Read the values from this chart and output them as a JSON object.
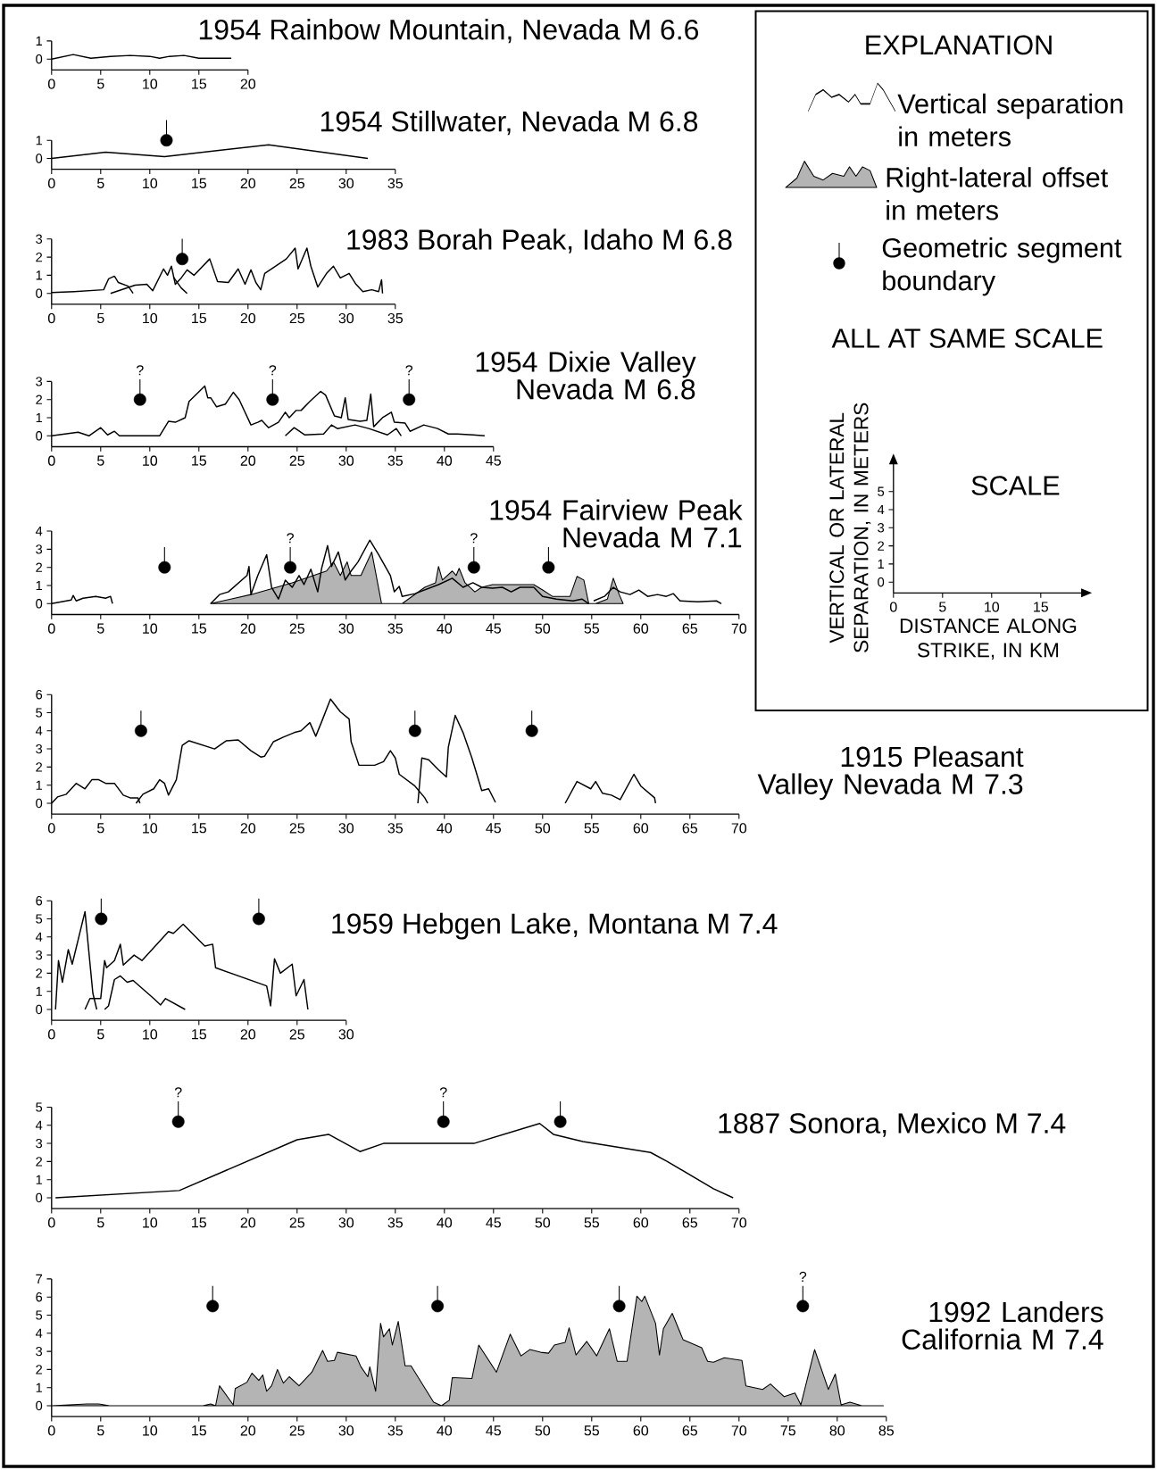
{
  "chart_data": [
    {
      "type": "line",
      "title": "1954  Rainbow Mountain, Nevada  M 6.6",
      "xlim": [
        0,
        20
      ],
      "xticks": [
        0,
        5,
        10,
        15,
        20
      ],
      "ylim": [
        -0.6,
        1
      ],
      "yticks": [
        0,
        1
      ],
      "series": [
        {
          "type": "line",
          "color": "#000000",
          "x": [
            0,
            2.2,
            4,
            6,
            8,
            10,
            11,
            12,
            13.5,
            15,
            18.3
          ],
          "values": [
            0,
            0.25,
            0.05,
            0.15,
            0.2,
            0.15,
            0.05,
            0.15,
            0.2,
            0.05,
            0.05
          ]
        }
      ]
    },
    {
      "type": "line",
      "title": "1954  Stillwater, Nevada  M 6.8",
      "xlim": [
        0,
        35
      ],
      "xticks": [
        0,
        5,
        10,
        15,
        20,
        25,
        30,
        35
      ],
      "ylim": [
        -0.6,
        1
      ],
      "yticks": [
        0,
        1
      ],
      "series": [
        {
          "type": "line",
          "color": "#000000",
          "x": [
            0,
            5.5,
            11.5,
            22.1,
            32.2
          ],
          "values": [
            0,
            0.35,
            0.1,
            0.75,
            0
          ]
        },
        {
          "type": "scatter",
          "color": "#000000",
          "marker": "circle",
          "x": [
            11.7
          ],
          "values": [
            1.0
          ]
        }
      ]
    },
    {
      "type": "line",
      "title": "1983  Borah Peak, Idaho  M 6.8",
      "xlim": [
        0,
        35
      ],
      "xticks": [
        0,
        5,
        10,
        15,
        20,
        25,
        30,
        35
      ],
      "ylim": [
        -0.6,
        3
      ],
      "yticks": [
        0,
        1,
        2,
        3
      ],
      "series": [
        {
          "type": "line",
          "color": "#000000",
          "x": [
            0,
            2.3,
            5.3,
            5.8,
            6.4,
            6.8,
            7.8,
            8.3
          ],
          "values": [
            0.05,
            0.1,
            0.2,
            0.8,
            0.95,
            0.6,
            0.4,
            0
          ]
        },
        {
          "type": "line",
          "color": "#000000",
          "x": [
            6,
            8.5,
            9.7,
            10.3,
            11.4,
            11.8,
            12.2,
            12.6,
            13.2,
            13.8,
            14.5,
            16.1,
            16.9,
            18.0,
            19.0,
            19.7,
            20.3,
            20.8,
            21.3,
            21.7,
            23.9,
            24.8,
            25.1,
            26.0,
            26.4,
            27.1,
            28.0,
            28.7,
            29.4,
            30.3,
            31.0,
            31.7,
            32.6,
            33.3,
            33.6,
            33.7
          ],
          "values": [
            0,
            0.45,
            0.5,
            0.15,
            1.35,
            1.0,
            1.5,
            0.5,
            0.85,
            1.3,
            1.0,
            1.9,
            0.65,
            0.6,
            1.35,
            0.5,
            1.3,
            0.6,
            0.2,
            1.1,
            1.9,
            2.5,
            1.35,
            2.5,
            1.5,
            0.35,
            1.1,
            1.5,
            0.85,
            1.1,
            0.5,
            0.1,
            0.2,
            0.1,
            0.75,
            0
          ]
        },
        {
          "type": "line",
          "color": "#000000",
          "x": [
            12.4,
            13.2,
            13.8
          ],
          "values": [
            0.9,
            0.3,
            0
          ]
        },
        {
          "type": "scatter",
          "color": "#000000",
          "marker": "circle",
          "x": [
            13.3
          ],
          "values": [
            1.9
          ]
        }
      ]
    },
    {
      "type": "line",
      "title": "1954  Dixie Valley Nevada  M 6.8",
      "xlim": [
        0,
        45
      ],
      "xticks": [
        0,
        5,
        10,
        15,
        20,
        25,
        30,
        35,
        40,
        45
      ],
      "ylim": [
        -0.6,
        3
      ],
      "yticks": [
        0,
        1,
        2,
        3
      ],
      "series": [
        {
          "type": "line",
          "color": "#000000",
          "x": [
            0,
            2.7,
            3.8,
            5,
            5.7,
            6.4,
            6.9,
            11,
            11.9,
            12.6,
            13.6,
            14.0,
            15.6,
            15.9,
            16.2,
            16.8,
            17.7,
            18.5,
            19.1,
            20.3,
            21,
            21.4,
            22.1,
            23.1,
            23.8,
            24.2,
            24.9,
            25.4,
            26.3,
            27.4,
            27.9,
            28.8,
            29.5,
            29.9,
            30.2,
            31.4,
            32.1,
            32.5,
            32.8,
            33.7,
            34.6,
            34.9,
            36,
            36.5,
            37.9,
            39.3,
            40.4,
            41.3,
            42.9,
            44.1
          ],
          "values": [
            0,
            0.2,
            0,
            0.45,
            0.05,
            0.25,
            0,
            0,
            0.8,
            0.75,
            1.0,
            1.9,
            2.75,
            2.1,
            2.1,
            1.6,
            1.75,
            2.4,
            2.0,
            0.6,
            0.75,
            0.85,
            0.45,
            0.75,
            1.3,
            1.0,
            1.4,
            1.4,
            1.9,
            2.45,
            2.25,
            1.1,
            1.0,
            2.1,
            0.9,
            0.8,
            0.85,
            2.3,
            0.5,
            1.0,
            1.3,
            0.75,
            0.7,
            0.25,
            0.6,
            0.4,
            0.1,
            0.1,
            0.05,
            0
          ]
        },
        {
          "type": "line",
          "color": "#000000",
          "x": [
            23.8,
            24.7,
            25.8,
            27.7,
            28.5,
            29.1,
            30.9,
            32.3,
            34.2,
            35.1,
            35.6
          ],
          "values": [
            0,
            0.45,
            0.05,
            0.1,
            0.6,
            0.4,
            0.6,
            0.4,
            0.05,
            0.4,
            0
          ]
        },
        {
          "type": "scatter",
          "color": "#000000",
          "marker": "circle",
          "x": [
            9.0,
            22.5,
            36.4
          ],
          "values": [
            2.0,
            2.0,
            2.0
          ]
        }
      ],
      "annotations": [
        {
          "text": "?",
          "x": 9.0,
          "y": 2.0
        },
        {
          "text": "?",
          "x": 22.5,
          "y": 2.0
        },
        {
          "text": "?",
          "x": 36.4,
          "y": 2.0
        }
      ]
    },
    {
      "type": "line",
      "title": "1954  Fairview Peak Nevada  M 7.1",
      "xlim": [
        0,
        70
      ],
      "xticks": [
        0,
        5,
        10,
        15,
        20,
        25,
        30,
        35,
        40,
        45,
        50,
        55,
        60,
        65,
        70
      ],
      "ylim": [
        -0.6,
        4
      ],
      "yticks": [
        0,
        1,
        2,
        3,
        4
      ],
      "series": [
        {
          "type": "area",
          "color": "#b4b4b4",
          "x": [
            16.2,
            20.3,
            24.5,
            28,
            28.7,
            29.4,
            30.1,
            30.5,
            31.5,
            32.6,
            33.6,
            35.7,
            38,
            39.1,
            39.4,
            39.8,
            40.8,
            41.2,
            41.5,
            42.1,
            43.1,
            43.8,
            44.9,
            46.8,
            48,
            49.1,
            50,
            51,
            52.8,
            53.5,
            54.2,
            54.7,
            55.4,
            56.6,
            57.2,
            57.8,
            58.2
          ],
          "values": [
            0,
            0.5,
            1.15,
            1.8,
            2.3,
            1.55,
            2.3,
            1.55,
            1.55,
            2.85,
            0,
            0,
            0.9,
            1.15,
            2.05,
            1.3,
            1.8,
            1.55,
            1.95,
            1.15,
            0.65,
            0.9,
            1.05,
            1.05,
            1.05,
            1.05,
            0.75,
            0.4,
            0.4,
            1.5,
            1.3,
            0,
            0,
            0.25,
            1.4,
            0.5,
            0
          ]
        },
        {
          "type": "line",
          "color": "#000000",
          "x": [
            0,
            2,
            2.2,
            2.5,
            3.2,
            4.5,
            5.5,
            6,
            6.2
          ],
          "values": [
            0,
            0.2,
            0.45,
            0.15,
            0.3,
            0.4,
            0.3,
            0.4,
            0
          ]
        },
        {
          "type": "line",
          "color": "#000000",
          "x": [
            16.2,
            17.1,
            18,
            19.9,
            20.1,
            20.3,
            21,
            21.9,
            22.4,
            23.1,
            23.8,
            24.5,
            25.2,
            25.7,
            26.4,
            27.1,
            27.5,
            28.1,
            28.5,
            29.2,
            29.9,
            30.5,
            31.2,
            32.4,
            33.3,
            34.5,
            34.9,
            35.4,
            35.7,
            37,
            39.4,
            40.8,
            41.9,
            42.9,
            43.8,
            44.9,
            45.9,
            46.8,
            47.7,
            49.1,
            50,
            51.4,
            53.1,
            54,
            54.7
          ],
          "values": [
            0,
            0.5,
            0.65,
            1.55,
            2.05,
            0.5,
            1.55,
            2.7,
            0.9,
            0.25,
            1.3,
            0.9,
            1.55,
            1.05,
            1.9,
            0.65,
            1.95,
            3.2,
            2.05,
            2.85,
            1.3,
            1.8,
            2.3,
            3.5,
            2.7,
            1.55,
            0.65,
            0.95,
            0.4,
            0.55,
            1.05,
            1.4,
            0.9,
            1.15,
            0.9,
            0.85,
            0.9,
            0.65,
            0.9,
            0.9,
            0.4,
            0.25,
            0.15,
            0.25,
            0
          ]
        },
        {
          "type": "line",
          "color": "#000000",
          "x": [
            55.2,
            56.3,
            57.2,
            57.9,
            58.9,
            59.8,
            60.7,
            61.7,
            62.6,
            63.3,
            64,
            65.8,
            67.7,
            68.2
          ],
          "values": [
            0.15,
            0.4,
            0.9,
            0.65,
            0.5,
            0.75,
            0.4,
            0.5,
            0.4,
            0.55,
            0.15,
            0.1,
            0.15,
            0
          ]
        },
        {
          "type": "scatter",
          "color": "#000000",
          "marker": "circle",
          "x": [
            11.5,
            24.3,
            43.0,
            50.6
          ],
          "values": [
            2.0,
            2.0,
            2.0,
            2.0
          ]
        }
      ],
      "annotations": [
        {
          "text": "?",
          "x": 24.3,
          "y": 2.0
        },
        {
          "text": "?",
          "x": 43.0,
          "y": 2.0
        }
      ]
    },
    {
      "type": "line",
      "title": "1915  Pleasant Valley Nevada  M 7.3",
      "xlim": [
        0,
        70
      ],
      "xticks": [
        0,
        5,
        10,
        15,
        20,
        25,
        30,
        35,
        40,
        45,
        50,
        55,
        60,
        65,
        70
      ],
      "ylim": [
        -0.6,
        6
      ],
      "yticks": [
        0,
        1,
        2,
        3,
        4,
        5,
        6
      ],
      "series": [
        {
          "type": "line",
          "color": "#000000",
          "x": [
            0,
            0.6,
            1.5,
            2.5,
            3.4,
            4.1,
            4.8,
            5.5,
            6.4,
            7.3,
            8,
            8.8,
            9
          ],
          "values": [
            0,
            0.35,
            0.5,
            1.1,
            0.8,
            1.3,
            1.3,
            1.1,
            1.1,
            0.45,
            0.3,
            0.3,
            0
          ]
        },
        {
          "type": "line",
          "color": "#000000",
          "x": [
            8.6,
            9.3,
            10.4,
            11,
            11.5,
            11.9,
            12.7,
            13.3,
            14,
            16.6,
            17.8,
            19,
            20.3,
            21.3,
            21.7,
            22.6,
            23.6,
            24.7,
            25.4,
            26.3,
            26.9,
            27.5,
            28.4,
            29.4,
            30.3,
            30.5,
            31.3,
            32.9,
            33.8,
            34.5,
            35,
            35.4,
            37,
            38,
            38.3
          ],
          "values": [
            0,
            0.5,
            0.8,
            1.3,
            1.1,
            0.45,
            1.3,
            3.2,
            3.45,
            3.0,
            3.45,
            3.5,
            2.9,
            2.55,
            2.6,
            3.4,
            3.65,
            3.9,
            4.0,
            4.45,
            3.7,
            4.5,
            5.75,
            5.05,
            4.65,
            3.4,
            2.1,
            2.1,
            2.3,
            2.9,
            2.5,
            1.6,
            0.95,
            0.3,
            0
          ]
        },
        {
          "type": "line",
          "color": "#000000",
          "x": [
            37.3,
            37.7,
            38.4,
            39.4,
            40.2,
            40.4,
            41.1,
            41.9,
            42.8,
            43.8,
            44.5,
            45.2
          ],
          "values": [
            0,
            2.5,
            2.4,
            1.85,
            1.45,
            3.1,
            4.85,
            3.9,
            2.5,
            0.7,
            0.8,
            0.05
          ]
        },
        {
          "type": "line",
          "color": "#000000",
          "x": [
            52.3,
            53.5,
            54.9,
            55.4,
            56.1,
            57,
            57.9,
            59.3,
            60,
            61.4,
            61.5
          ],
          "values": [
            0,
            1.2,
            0.8,
            1.2,
            0.55,
            0.45,
            0.2,
            1.6,
            0.95,
            0.3,
            0
          ]
        },
        {
          "type": "scatter",
          "color": "#000000",
          "marker": "circle",
          "x": [
            9.1,
            37.0,
            48.9
          ],
          "values": [
            4.0,
            4.0,
            4.0
          ]
        }
      ]
    },
    {
      "type": "line",
      "title": "1959  Hebgen Lake, Montana  M 7.4",
      "xlim": [
        0,
        30
      ],
      "xticks": [
        0,
        5,
        10,
        15,
        20,
        25,
        30
      ],
      "ylim": [
        -0.6,
        6
      ],
      "yticks": [
        0,
        1,
        2,
        3,
        4,
        5,
        6
      ],
      "series": [
        {
          "type": "line",
          "color": "#000000",
          "x": [
            0.4,
            0.7,
            1.1,
            1.7,
            2.1,
            3.4,
            4.2,
            4.6
          ],
          "values": [
            0,
            2.7,
            1.5,
            3.3,
            2.5,
            5.4,
            0.9,
            0
          ]
        },
        {
          "type": "line",
          "color": "#000000",
          "x": [
            3.4,
            3.9,
            5,
            5.4,
            5.6,
            6.4,
            7,
            7.3,
            8.4,
            9.2,
            11.9,
            12.4,
            13.4,
            15.6,
            16.4,
            16.7,
            21.9,
            22.3,
            22.7,
            23.3,
            24.5,
            24.9,
            25.7,
            26.1
          ],
          "values": [
            0,
            0.6,
            0.6,
            2.7,
            2.3,
            2.7,
            3.6,
            2.45,
            3.0,
            2.7,
            4.3,
            4.2,
            4.7,
            3.5,
            3.6,
            2.3,
            1.3,
            0.2,
            2.8,
            2.0,
            2.5,
            0.75,
            1.65,
            0
          ]
        },
        {
          "type": "line",
          "color": "#000000",
          "x": [
            5.4,
            5.8,
            6.4,
            7,
            7.7,
            8.3,
            10.4,
            11.1,
            11.6,
            13.6
          ],
          "values": [
            0,
            0.2,
            1.65,
            1.85,
            1.5,
            1.6,
            0.6,
            0.25,
            0.6,
            0
          ]
        },
        {
          "type": "scatter",
          "color": "#000000",
          "marker": "circle",
          "x": [
            5.05,
            21.1
          ],
          "values": [
            5.0,
            5.0
          ]
        }
      ]
    },
    {
      "type": "line",
      "title": "1887  Sonora, Mexico  M 7.4",
      "xlim": [
        0,
        70
      ],
      "xticks": [
        0,
        5,
        10,
        15,
        20,
        25,
        30,
        35,
        40,
        45,
        50,
        55,
        60,
        65,
        70
      ],
      "ylim": [
        -0.6,
        5
      ],
      "yticks": [
        0,
        1,
        2,
        3,
        4,
        5
      ],
      "series": [
        {
          "type": "line",
          "color": "#000000",
          "x": [
            0.4,
            13,
            25,
            28.2,
            31.4,
            33.8,
            43,
            49.7,
            51.1,
            54.1,
            61,
            62.7,
            67.4,
            69.4
          ],
          "values": [
            0,
            0.4,
            3.2,
            3.5,
            2.55,
            3.0,
            3.0,
            4.1,
            3.5,
            3.1,
            2.5,
            2.0,
            0.5,
            0
          ]
        },
        {
          "type": "scatter",
          "color": "#000000",
          "marker": "circle",
          "x": [
            12.9,
            39.9,
            51.8
          ],
          "values": [
            4.2,
            4.2,
            4.2
          ]
        }
      ],
      "annotations": [
        {
          "text": "?",
          "x": 12.9,
          "y": 4.2
        },
        {
          "text": "?",
          "x": 39.9,
          "y": 4.2
        }
      ]
    },
    {
      "type": "line",
      "title": "1992  Landers California  M 7.4",
      "xlim": [
        0,
        85
      ],
      "xticks": [
        0,
        5,
        10,
        15,
        20,
        25,
        30,
        35,
        40,
        45,
        50,
        55,
        60,
        65,
        70,
        75,
        80,
        85
      ],
      "ylim": [
        -0.6,
        7
      ],
      "yticks": [
        0,
        1,
        2,
        3,
        4,
        5,
        6,
        7
      ],
      "series": [
        {
          "type": "area",
          "color": "#b4b4b4",
          "x": [
            0,
            3.6,
            4.8,
            5.9,
            15.4,
            16.2,
            16.7,
            17.1,
            18.5,
            18.7,
            19.9,
            20.4,
            21.1,
            21.5,
            21.9,
            22.4,
            23,
            23.6,
            24.2,
            25.2,
            26.5,
            27.6,
            28.1,
            28.8,
            29.1,
            31,
            31.5,
            32.2,
            32.4,
            33,
            33.5,
            33.8,
            34.4,
            34.7,
            35.3,
            36,
            36.6,
            38.9,
            39.7,
            40.5,
            40.8,
            42.8,
            43.5,
            45.3,
            46.7,
            47.8,
            48.7,
            49.8,
            50.6,
            51.2,
            52.3,
            52.7,
            53.4,
            54.5,
            55.5,
            56.8,
            57.6,
            58.6,
            59.6,
            60.1,
            60.4,
            61.5,
            61.9,
            62.3,
            63.2,
            64.3,
            66.2,
            66.8,
            67.4,
            68.5,
            70.3,
            70.7,
            72.4,
            73.2,
            74.6,
            75.7,
            76.3,
            77.7,
            79.1,
            79.8,
            80.4,
            81.3,
            82.5,
            84.7
          ],
          "values": [
            0,
            0.1,
            0.1,
            0,
            0,
            0.1,
            0,
            1.1,
            0.05,
            0.95,
            1.3,
            1.8,
            1.4,
            1.7,
            0.8,
            1.1,
            2.0,
            1.25,
            1.6,
            1.1,
            1.85,
            3.05,
            2.45,
            2.5,
            2.95,
            2.75,
            2.15,
            1.6,
            2.15,
            0.8,
            4.55,
            3.8,
            4.25,
            3.35,
            4.65,
            2.2,
            2.2,
            0.2,
            0,
            0.3,
            1.55,
            1.5,
            3.35,
            1.85,
            3.95,
            2.75,
            3.1,
            2.95,
            2.9,
            3.35,
            3.5,
            4.3,
            2.8,
            3.55,
            2.75,
            4.25,
            2.45,
            2.45,
            6.05,
            5.75,
            6.05,
            4.55,
            2.8,
            4.25,
            5.1,
            3.65,
            3.2,
            2.45,
            2.4,
            2.65,
            2.5,
            1.1,
            0.9,
            1.2,
            0.5,
            0.7,
            0.05,
            3.1,
            0.9,
            1.75,
            0.05,
            0.2,
            0,
            0
          ]
        },
        {
          "type": "scatter",
          "color": "#000000",
          "marker": "circle",
          "x": [
            16.4,
            39.3,
            57.8,
            76.5
          ],
          "values": [
            5.5,
            5.5,
            5.5,
            5.5
          ]
        }
      ],
      "annotations": [
        {
          "text": "?",
          "x": 76.5,
          "y": 5.5
        }
      ]
    },
    {
      "type": "other",
      "title": "EXPLANATION",
      "annotations": [
        "Vertical separation in meters",
        "Right-lateral offset in meters",
        "Geometric segment boundary",
        "ALL AT SAME SCALE"
      ]
    },
    {
      "type": "line",
      "title": "SCALE",
      "xlabel": "DISTANCE ALONG STRIKE, IN KM",
      "ylabel": "VERTICAL OR LATERAL SEPARATION, IN METERS",
      "xlim": [
        0,
        19.3
      ],
      "xticks": [
        0,
        5,
        10,
        15
      ],
      "ylim": [
        -0.6,
        6.6
      ],
      "yticks": [
        0,
        1,
        2,
        3,
        4,
        5
      ]
    }
  ]
}
